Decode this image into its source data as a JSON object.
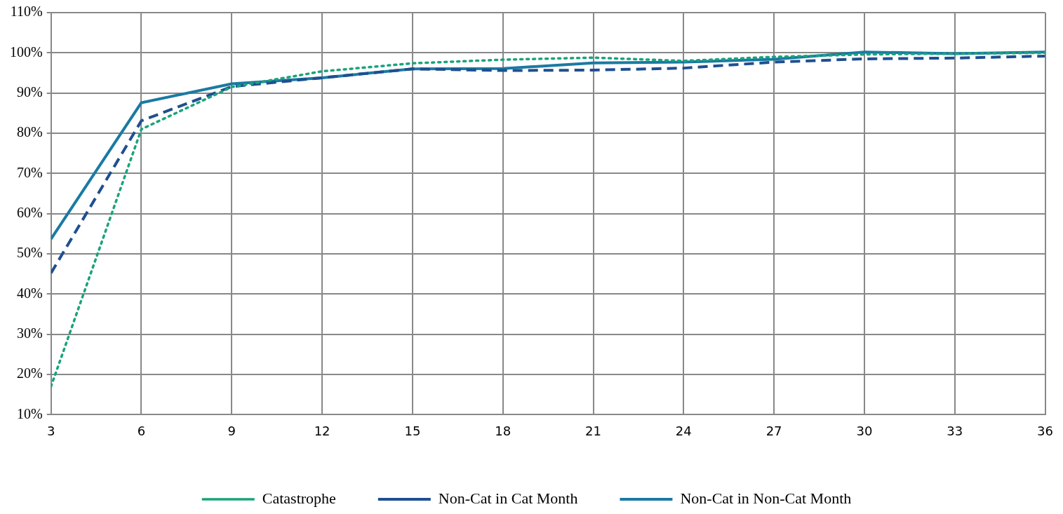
{
  "chart_data": {
    "type": "line",
    "xlim": [
      3,
      36
    ],
    "xticks": [
      3,
      6,
      9,
      12,
      15,
      18,
      21,
      24,
      27,
      30,
      33,
      36
    ],
    "ylim": [
      10,
      110
    ],
    "yticks": [
      {
        "value": 10,
        "label": "10%"
      },
      {
        "value": 20,
        "label": "20%"
      },
      {
        "value": 30,
        "label": "30%"
      },
      {
        "value": 40,
        "label": "40%"
      },
      {
        "value": 50,
        "label": "50%"
      },
      {
        "value": 60,
        "label": "60%"
      },
      {
        "value": 70,
        "label": "70%"
      },
      {
        "value": 80,
        "label": "80%"
      },
      {
        "value": 90,
        "label": "90%"
      },
      {
        "value": 100,
        "label": "100%"
      },
      {
        "value": 110,
        "label": "110%"
      }
    ],
    "x": [
      3,
      6,
      9,
      12,
      15,
      18,
      21,
      24,
      27,
      30,
      33,
      36
    ],
    "grid": true,
    "legend": "bottom",
    "marker": "none",
    "series": [
      {
        "name": "Catastrophe",
        "color": "#1aa37a",
        "line_style": "dotted",
        "values": [
          17,
          81,
          91.5,
          95.4,
          97.4,
          98.3,
          98.8,
          98,
          99,
          99.6,
          99.8,
          100
        ]
      },
      {
        "name": "Non-Cat in Cat Month",
        "color": "#1f4f8f",
        "line_style": "dashed",
        "values": [
          45.2,
          83.1,
          91.6,
          93.8,
          96,
          95.6,
          95.7,
          96.2,
          97.7,
          98.5,
          98.7,
          99.2
        ]
      },
      {
        "name": "Non-Cat in Non-Cat Month",
        "color": "#1a7aa3",
        "line_style": "solid",
        "values": [
          53.7,
          87.6,
          92.3,
          93.8,
          96,
          96.1,
          97.5,
          97.7,
          98.4,
          100.2,
          99.8,
          100.2
        ]
      }
    ]
  }
}
